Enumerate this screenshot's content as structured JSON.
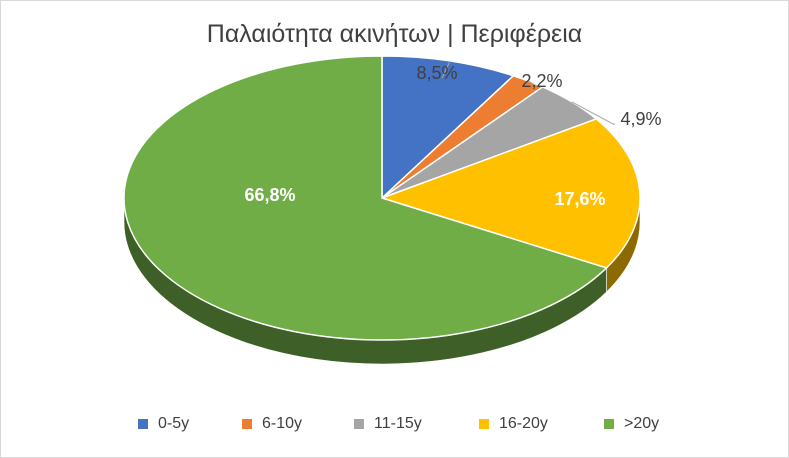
{
  "chart_data": {
    "type": "pie",
    "title": "Παλαιότητα ακινήτων | Περιφέρεια",
    "categories": [
      "0-5y",
      "6-10y",
      "11-15y",
      "16-20y",
      ">20y"
    ],
    "values": [
      8.5,
      2.2,
      4.9,
      17.6,
      66.8
    ],
    "data_labels": [
      "8,5%",
      "2,2%",
      "4,9%",
      "17,6%",
      "66,8%"
    ],
    "colors": [
      "#4472C4",
      "#ED7D31",
      "#A5A5A5",
      "#FFC000",
      "#70AD47"
    ],
    "legend_position": "bottom",
    "style": "3d-pie"
  }
}
